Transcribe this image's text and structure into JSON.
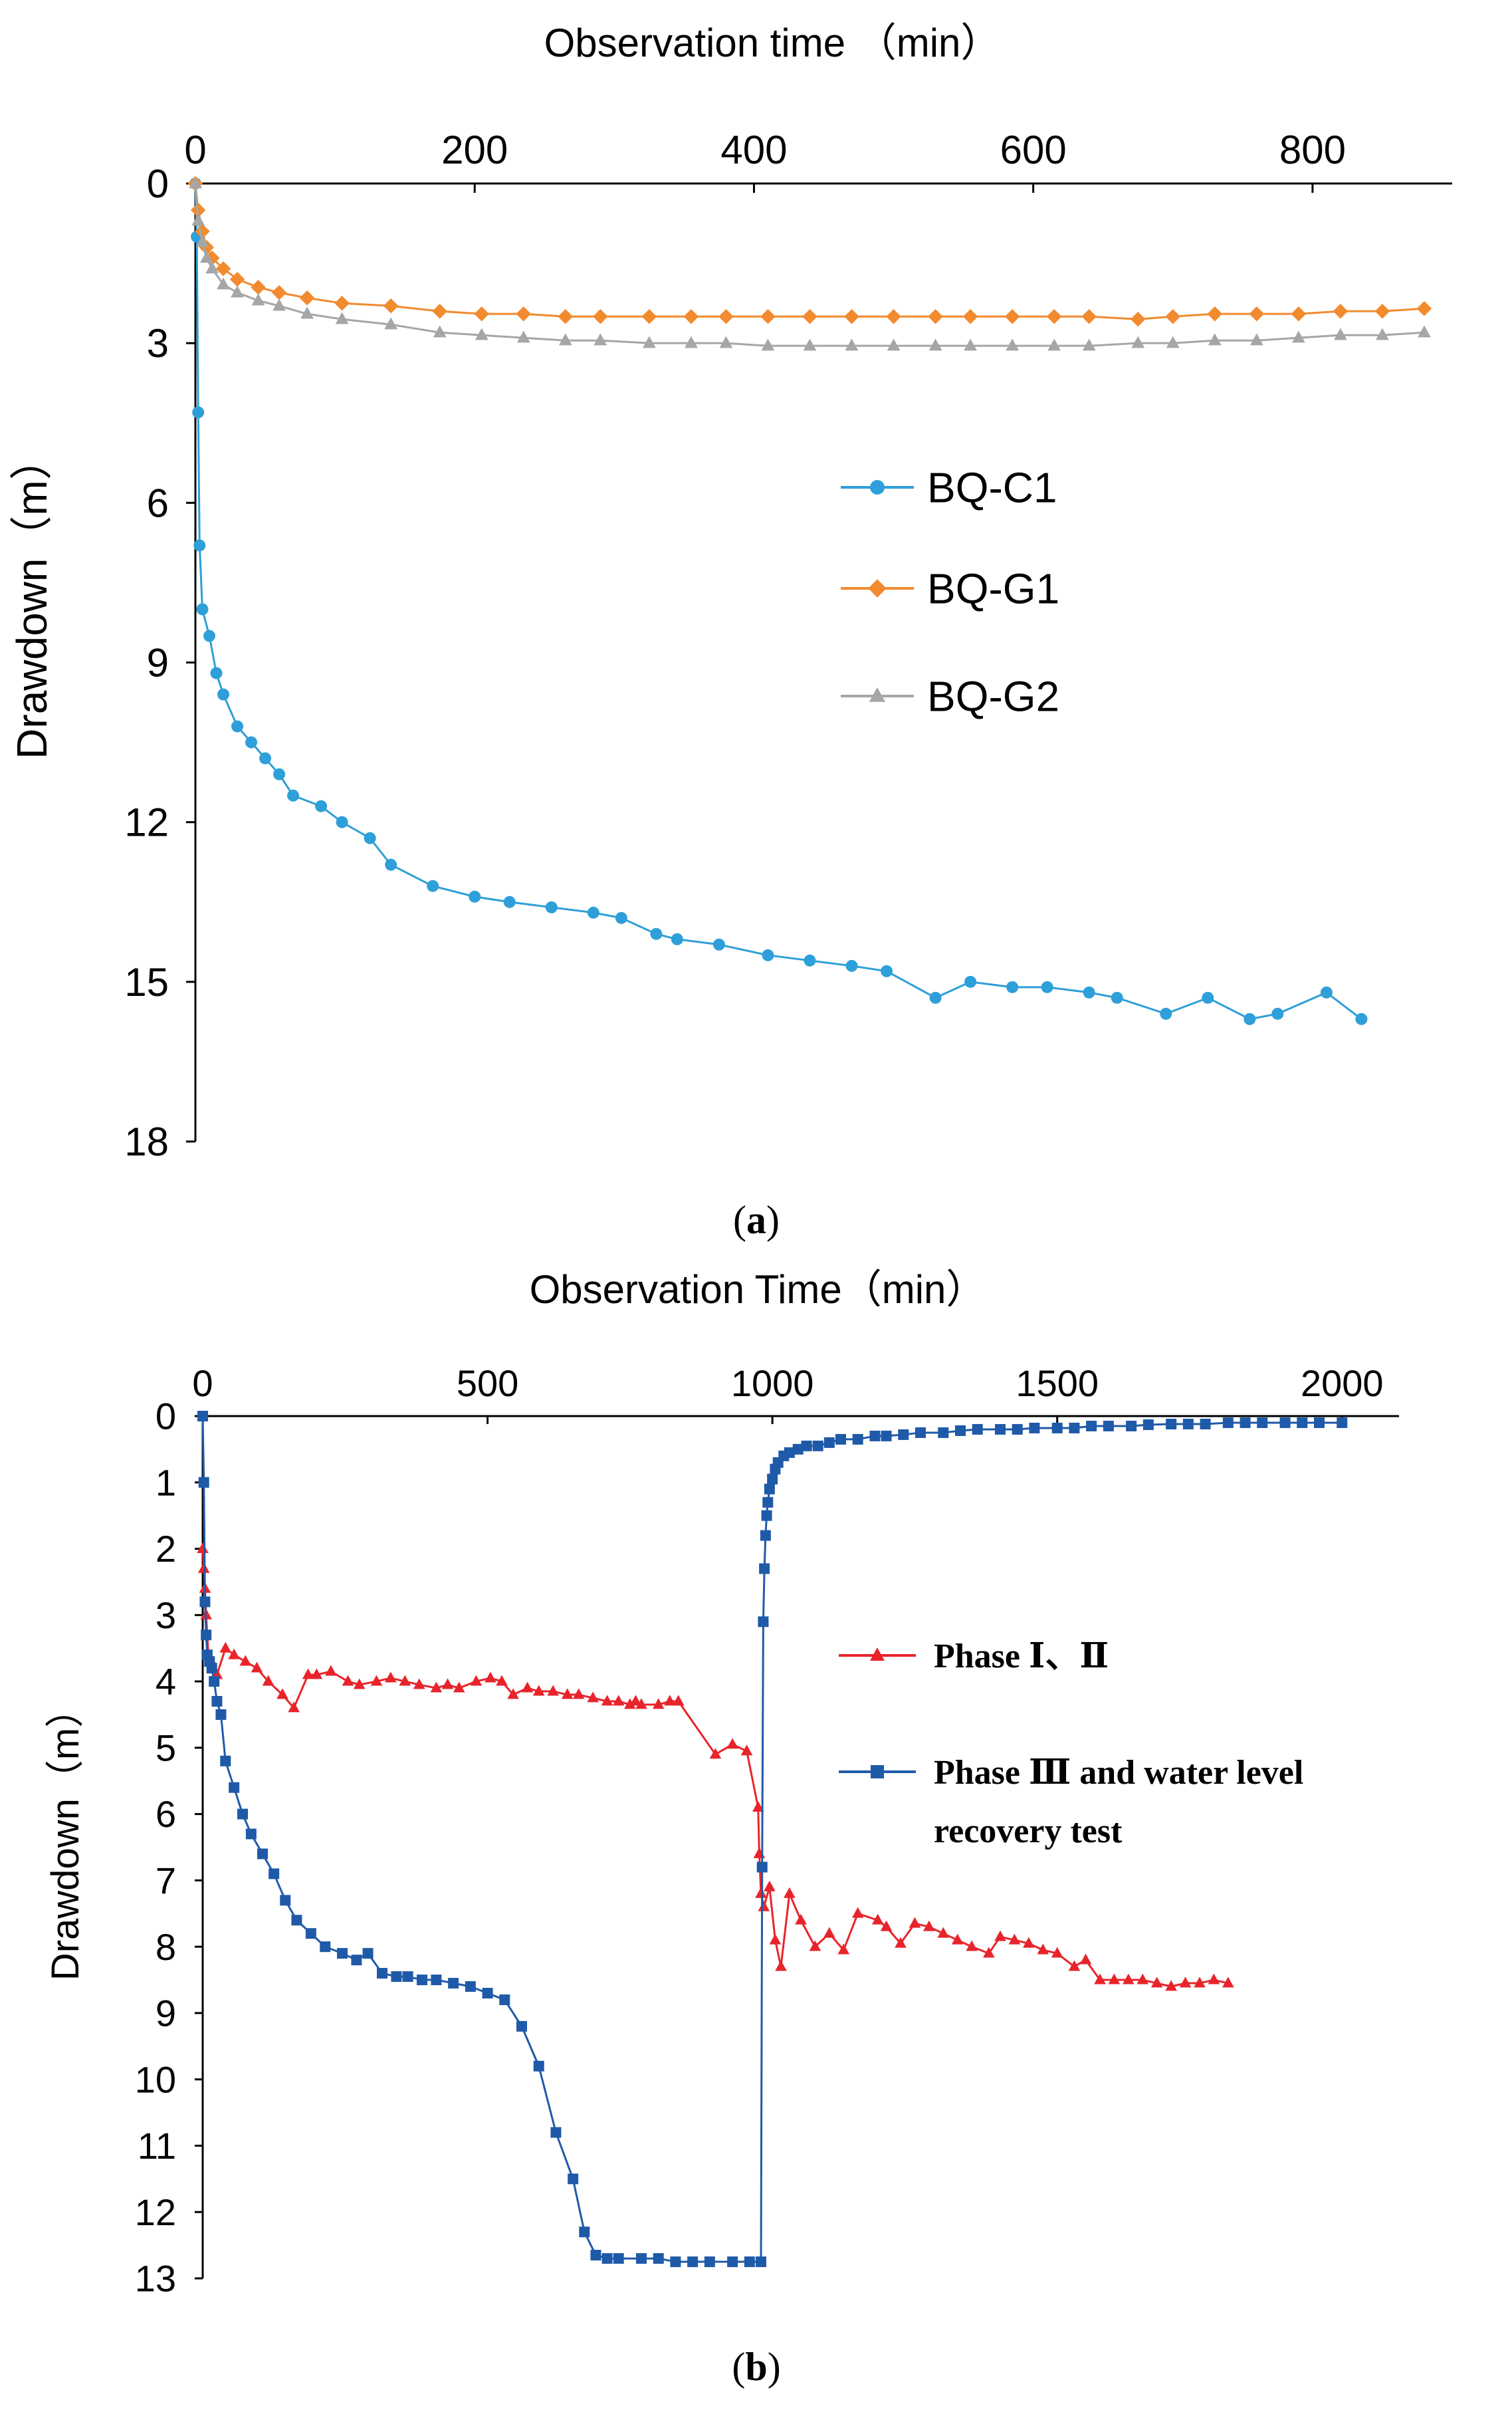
{
  "charts": [
    {
      "type": "line",
      "title": "",
      "xlabel": "Observation time （min）",
      "ylabel": "Drawdown（m）",
      "caption_prefix": "(",
      "caption_letter": "a",
      "caption_suffix": ")",
      "x_axis_position": "top",
      "y_axis_inverted": true,
      "xlim": [
        0,
        900
      ],
      "ylim": [
        0,
        18
      ],
      "xticks": [
        0,
        200,
        400,
        600,
        800
      ],
      "yticks": [
        0,
        3,
        6,
        9,
        12,
        15,
        18
      ],
      "legend": [
        "BQ-C1",
        "BQ-G1",
        "BQ-G2"
      ],
      "legend_position": "center-right",
      "grid": false,
      "series": [
        {
          "name": "BQ-C1",
          "color": "#2E9FD8",
          "marker": "circle",
          "x": [
            0,
            1,
            2,
            3,
            5,
            10,
            15,
            20,
            30,
            40,
            50,
            60,
            70,
            90,
            105,
            125,
            140,
            170,
            200,
            225,
            255,
            285,
            305,
            330,
            345,
            375,
            410,
            440,
            470,
            495,
            530,
            555,
            585,
            610,
            640,
            660,
            695,
            725,
            755,
            775,
            810,
            835
          ],
          "y": [
            0,
            1,
            4.3,
            6.8,
            8,
            8.5,
            9.2,
            9.6,
            10.2,
            10.5,
            10.8,
            11.1,
            11.5,
            11.7,
            12,
            12.3,
            12.8,
            13.2,
            13.4,
            13.5,
            13.6,
            13.7,
            13.8,
            14.1,
            14.2,
            14.3,
            14.5,
            14.6,
            14.7,
            14.8,
            15.3,
            15,
            15.1,
            15.1,
            15.2,
            15.3,
            15.6,
            15.3,
            15.7,
            15.6,
            15.2,
            15.7
          ]
        },
        {
          "name": "BQ-G1",
          "color": "#F28A2E",
          "marker": "diamond",
          "x": [
            0,
            2,
            5,
            8,
            12,
            20,
            30,
            45,
            60,
            80,
            105,
            140,
            175,
            205,
            235,
            265,
            290,
            325,
            355,
            380,
            410,
            440,
            470,
            500,
            530,
            555,
            585,
            615,
            640,
            675,
            700,
            730,
            760,
            790,
            820,
            850,
            880
          ],
          "y": [
            0,
            0.5,
            0.9,
            1.2,
            1.4,
            1.6,
            1.8,
            1.95,
            2.05,
            2.15,
            2.25,
            2.3,
            2.4,
            2.45,
            2.45,
            2.5,
            2.5,
            2.5,
            2.5,
            2.5,
            2.5,
            2.5,
            2.5,
            2.5,
            2.5,
            2.5,
            2.5,
            2.5,
            2.5,
            2.55,
            2.5,
            2.45,
            2.45,
            2.45,
            2.4,
            2.4,
            2.35
          ]
        },
        {
          "name": "BQ-G2",
          "color": "#A6A6A6",
          "marker": "triangle",
          "x": [
            0,
            2,
            5,
            8,
            12,
            20,
            30,
            45,
            60,
            80,
            105,
            140,
            175,
            205,
            235,
            265,
            290,
            325,
            355,
            380,
            410,
            440,
            470,
            500,
            530,
            555,
            585,
            615,
            640,
            675,
            700,
            730,
            760,
            790,
            820,
            850,
            880
          ],
          "y": [
            0,
            0.7,
            1.1,
            1.4,
            1.6,
            1.9,
            2.05,
            2.2,
            2.3,
            2.45,
            2.55,
            2.65,
            2.8,
            2.85,
            2.9,
            2.95,
            2.95,
            3,
            3,
            3,
            3.05,
            3.05,
            3.05,
            3.05,
            3.05,
            3.05,
            3.05,
            3.05,
            3.05,
            3,
            3,
            2.95,
            2.95,
            2.9,
            2.85,
            2.85,
            2.8
          ]
        }
      ]
    },
    {
      "type": "line",
      "title": "",
      "xlabel": "Observation Time（min）",
      "ylabel": "Drawdown（m）",
      "caption_prefix": "(",
      "caption_letter": "b",
      "caption_suffix": ")",
      "x_axis_position": "top",
      "y_axis_inverted": true,
      "xlim": [
        0,
        2100
      ],
      "ylim": [
        0,
        13
      ],
      "xticks": [
        0,
        500,
        1000,
        1500,
        2000
      ],
      "yticks": [
        0,
        1,
        2,
        3,
        4,
        5,
        6,
        7,
        8,
        9,
        10,
        11,
        12,
        13
      ],
      "legend": [
        "Phase Ⅰ、Ⅱ",
        "Phase Ⅲ and water level recovery test"
      ],
      "legend_lines": [
        [
          "Phase Ⅰ、Ⅱ"
        ],
        [
          "Phase Ⅲ and water level",
          "recovery test"
        ]
      ],
      "legend_position": "center-right",
      "grid": false,
      "series": [
        {
          "name": "Phase Ⅰ、Ⅱ",
          "color": "#E8242B",
          "marker": "triangle",
          "x": [
            0,
            2,
            4,
            6,
            10,
            15,
            25,
            40,
            55,
            75,
            95,
            115,
            140,
            160,
            185,
            200,
            225,
            255,
            275,
            305,
            330,
            355,
            380,
            410,
            430,
            450,
            480,
            505,
            525,
            545,
            570,
            590,
            615,
            640,
            660,
            685,
            710,
            730,
            750,
            760,
            770,
            800,
            820,
            835,
            900,
            930,
            955,
            975,
            977,
            980,
            985,
            995,
            1005,
            1015,
            1030,
            1050,
            1075,
            1100,
            1125,
            1150,
            1185,
            1200,
            1225,
            1250,
            1275,
            1300,
            1325,
            1350,
            1380,
            1400,
            1425,
            1450,
            1475,
            1500,
            1530,
            1550,
            1575,
            1600,
            1625,
            1650,
            1675,
            1700,
            1725,
            1750,
            1775,
            1800
          ],
          "y": [
            2,
            2.3,
            2.6,
            3,
            3.6,
            3.7,
            3.9,
            3.5,
            3.6,
            3.7,
            3.8,
            4,
            4.2,
            4.4,
            3.9,
            3.9,
            3.85,
            4,
            4.05,
            4,
            3.95,
            4,
            4.05,
            4.1,
            4.05,
            4.1,
            4,
            3.95,
            4,
            4.2,
            4.1,
            4.15,
            4.15,
            4.2,
            4.2,
            4.25,
            4.3,
            4.3,
            4.35,
            4.3,
            4.35,
            4.35,
            4.3,
            4.3,
            5.1,
            4.95,
            5.05,
            5.9,
            6.6,
            7.2,
            7.4,
            7.1,
            7.9,
            8.3,
            7.2,
            7.6,
            8,
            7.8,
            8.05,
            7.5,
            7.6,
            7.7,
            7.95,
            7.65,
            7.7,
            7.8,
            7.9,
            8,
            8.1,
            7.85,
            7.9,
            7.95,
            8.05,
            8.1,
            8.3,
            8.2,
            8.5,
            8.5,
            8.5,
            8.5,
            8.55,
            8.6,
            8.55,
            8.55,
            8.5,
            8.55
          ]
        },
        {
          "name": "Phase Ⅲ and water level recovery test",
          "color": "#1F5AA8",
          "marker": "square",
          "x": [
            0,
            2,
            4,
            6,
            8,
            12,
            16,
            20,
            25,
            32,
            40,
            55,
            70,
            85,
            105,
            125,
            145,
            165,
            190,
            215,
            245,
            270,
            290,
            315,
            340,
            360,
            385,
            410,
            440,
            470,
            500,
            530,
            560,
            590,
            620,
            650,
            670,
            690,
            710,
            730,
            770,
            800,
            830,
            860,
            890,
            930,
            960,
            980,
            982,
            984,
            986,
            988,
            990,
            992,
            995,
            1000,
            1005,
            1010,
            1020,
            1030,
            1045,
            1060,
            1080,
            1100,
            1120,
            1150,
            1180,
            1200,
            1230,
            1260,
            1300,
            1330,
            1360,
            1400,
            1430,
            1460,
            1500,
            1530,
            1560,
            1590,
            1630,
            1660,
            1700,
            1730,
            1760,
            1800,
            1830,
            1860,
            1900,
            1930,
            1960,
            2000
          ],
          "y": [
            0,
            1,
            2.8,
            3.3,
            3.6,
            3.7,
            3.8,
            4,
            4.3,
            4.5,
            5.2,
            5.6,
            6,
            6.3,
            6.6,
            6.9,
            7.3,
            7.6,
            7.8,
            8,
            8.1,
            8.2,
            8.1,
            8.4,
            8.45,
            8.45,
            8.5,
            8.5,
            8.55,
            8.6,
            8.7,
            8.8,
            9.2,
            9.8,
            10.8,
            11.5,
            12.3,
            12.65,
            12.7,
            12.7,
            12.7,
            12.7,
            12.75,
            12.75,
            12.75,
            12.75,
            12.75,
            12.75,
            6.8,
            3.1,
            2.3,
            1.8,
            1.5,
            1.3,
            1.1,
            0.95,
            0.8,
            0.7,
            0.6,
            0.55,
            0.5,
            0.45,
            0.45,
            0.4,
            0.35,
            0.35,
            0.3,
            0.3,
            0.28,
            0.25,
            0.25,
            0.22,
            0.2,
            0.2,
            0.2,
            0.18,
            0.18,
            0.18,
            0.15,
            0.15,
            0.15,
            0.13,
            0.12,
            0.12,
            0.12,
            0.1,
            0.1,
            0.1,
            0.1,
            0.1,
            0.1,
            0.1
          ]
        }
      ]
    }
  ]
}
